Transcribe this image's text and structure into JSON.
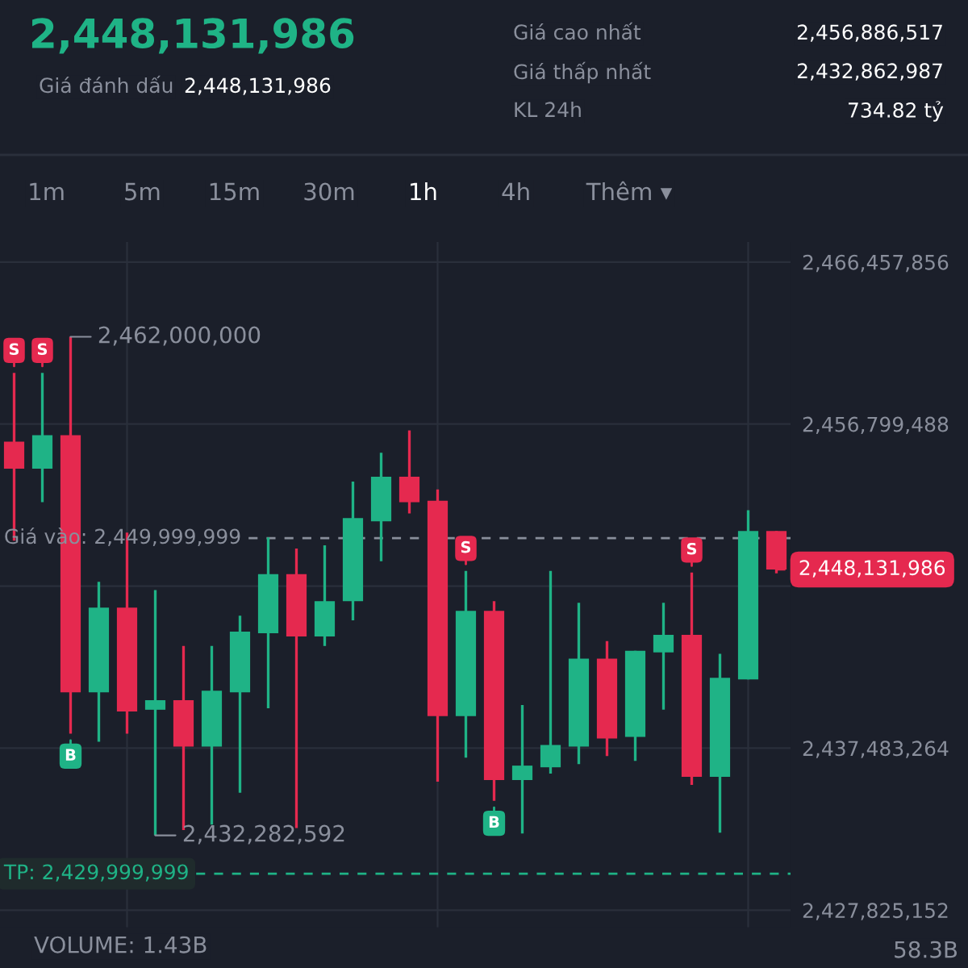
{
  "chart_data": {
    "type": "candlestick",
    "title": "2,448,131,986",
    "categories": [
      null,
      null,
      null,
      null,
      null,
      null,
      null,
      null,
      null,
      null,
      null,
      null,
      null,
      null,
      null,
      null,
      null,
      null,
      null,
      null,
      null,
      null,
      null,
      null,
      null,
      null,
      null,
      null
    ],
    "ohlc": [
      [
        2455750000,
        2459850000,
        2449850000,
        2454140000
      ],
      [
        2454140000,
        2459850000,
        2452140000,
        2456130000
      ],
      [
        2456130000,
        2462000000,
        2438340000,
        2440810000
      ],
      [
        2440810000,
        2447400000,
        2437860000,
        2445860000
      ],
      [
        2445860000,
        2450330000,
        2438340000,
        2439670000
      ],
      [
        2439770000,
        2446900000,
        2432282592,
        2440340000
      ],
      [
        2440340000,
        2443570000,
        2432600000,
        2437580000
      ],
      [
        2437580000,
        2443570000,
        2432920000,
        2440910000
      ],
      [
        2440810000,
        2445380000,
        2434820000,
        2444430000
      ],
      [
        2444330000,
        2450040000,
        2439860000,
        2447850000
      ],
      [
        2447850000,
        2449380000,
        2432720000,
        2444140000
      ],
      [
        2444140000,
        2449570000,
        2443570000,
        2446240000
      ],
      [
        2446240000,
        2453370000,
        2445100000,
        2451190000
      ],
      [
        2451000000,
        2455090000,
        2448620000,
        2453660000
      ],
      [
        2453660000,
        2456420000,
        2451470000,
        2452140000
      ],
      [
        2452230000,
        2452900000,
        2435480000,
        2439390000
      ],
      [
        2439390000,
        2448050000,
        2436910000,
        2445670000
      ],
      [
        2445670000,
        2446240000,
        2434340000,
        2435580000
      ],
      [
        2435580000,
        2440050000,
        2432400000,
        2436440000
      ],
      [
        2436340000,
        2448050000,
        2435960000,
        2437670000
      ],
      [
        2437580000,
        2446140000,
        2436530000,
        2442810000
      ],
      [
        2442810000,
        2443860000,
        2437010000,
        2438050000
      ],
      [
        2438150000,
        2443290000,
        2436720000,
        2443290000
      ],
      [
        2443190000,
        2446140000,
        2439770000,
        2444240000
      ],
      [
        2444240000,
        2447950000,
        2435290000,
        2435770000
      ],
      [
        2435770000,
        2443100000,
        2432440000,
        2441670000
      ],
      [
        2441580000,
        2451660000,
        2441580000,
        2450420000
      ],
      [
        2450420000,
        2450420000,
        2447900000,
        2448131986
      ]
    ],
    "colors": [
      "#e5294f",
      "#1fb386",
      "#e5294f",
      "#1fb386",
      "#e5294f",
      "#1fb386",
      "#e5294f",
      "#1fb386",
      "#1fb386",
      "#1fb386",
      "#e5294f",
      "#1fb386",
      "#1fb386",
      "#1fb386",
      "#e5294f",
      "#e5294f",
      "#1fb386",
      "#e5294f",
      "#1fb386",
      "#1fb386",
      "#1fb386",
      "#e5294f",
      "#1fb386",
      "#1fb386",
      "#e5294f",
      "#1fb386",
      "#1fb386",
      "#e5294f"
    ],
    "ylim": [
      2426800000,
      2467650000
    ],
    "yticks": [
      {
        "value": 2427825152,
        "label": "2,427,825,152"
      },
      {
        "value": 2437483264,
        "label": "2,437,483,264"
      },
      {
        "value": 2447141376,
        "label": null
      },
      {
        "value": 2456799488,
        "label": "2,456,799,488"
      },
      {
        "value": 2466457856,
        "label": "2,466,457,856"
      }
    ],
    "grid": true,
    "ref_lines": [
      {
        "axis": "y",
        "value": 2449999999,
        "label": "Giá vào: 2,449,999,999",
        "color": "#8a8f9c",
        "line_style": "dashed"
      },
      {
        "axis": "y",
        "value": 2429999999,
        "label": "TP: 2,429,999,999",
        "color": "#1fb386",
        "line_style": "dashed"
      },
      {
        "axis": "y",
        "value": 2448131986,
        "label": "2,448,131,986",
        "color": "#e5294f",
        "line_style": "dashed"
      }
    ],
    "annotations": [
      "Giá đánh dấu",
      "2,448,131,986",
      "Giá cao nhất",
      "2,456,886,517",
      "Giá thấp nhất",
      "2,432,862,987",
      "KL 24h",
      "734.82 tỷ",
      "1m",
      "5m",
      "15m",
      "30m",
      "1h",
      "4h",
      "Thêm ▾",
      "VOLUME: 1.43B",
      "58.3B",
      "2,462,000,000",
      "2,432,282,592",
      {
        "text": "S",
        "y": 2459850000
      },
      {
        "text": "S",
        "y": 2459850000
      },
      {
        "text": "B",
        "y": 2438340000
      },
      {
        "text": "S",
        "y": 2448050000
      },
      {
        "text": "B",
        "y": 2434340000
      },
      {
        "text": "S",
        "y": 2447950000
      }
    ]
  }
}
